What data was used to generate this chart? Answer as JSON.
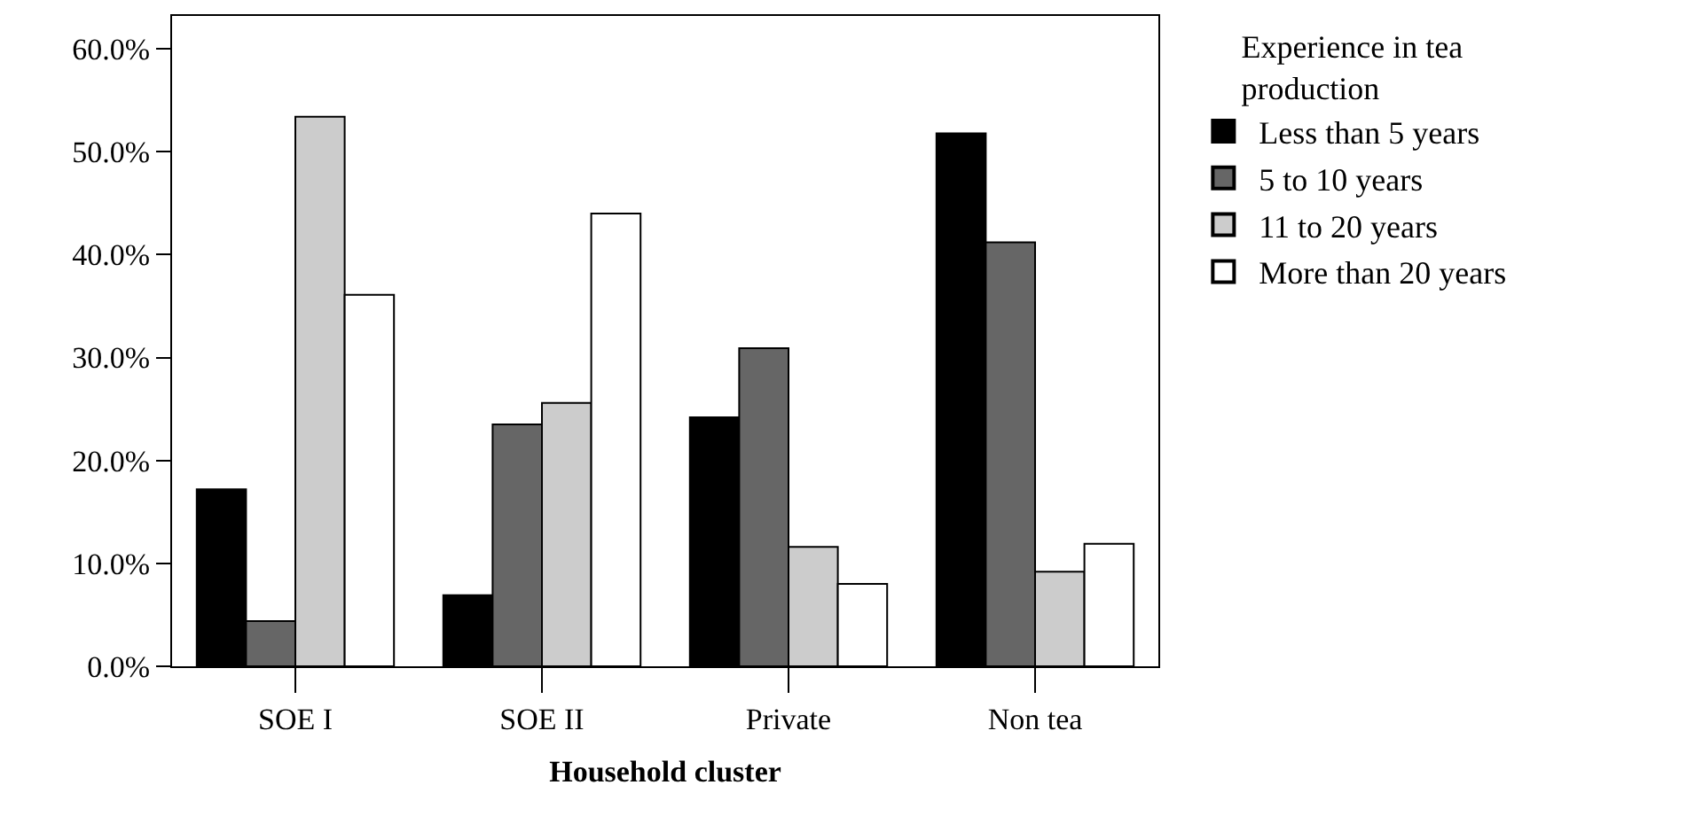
{
  "chart_data": {
    "type": "bar",
    "xlabel": "Household cluster",
    "legend_title": "Experience in tea production",
    "categories": [
      "SOE I",
      "SOE II",
      "Private",
      "Non tea"
    ],
    "series": [
      {
        "name": "Less than 5 years",
        "color": "#000000",
        "values": [
          17.2,
          6.9,
          24.2,
          51.8
        ]
      },
      {
        "name": "5 to 10 years",
        "color": "#666666",
        "values": [
          4.4,
          23.5,
          30.9,
          41.2
        ]
      },
      {
        "name": "11 to 20 years",
        "color": "#cccccc",
        "values": [
          53.4,
          25.6,
          11.6,
          9.2
        ]
      },
      {
        "name": "More than 20 years",
        "color": "#ffffff",
        "values": [
          36.1,
          44.0,
          8.0,
          11.9
        ]
      }
    ],
    "ylim": [
      0,
      63.2
    ],
    "yticks": [
      {
        "value": 0,
        "label": "0.0%"
      },
      {
        "value": 10,
        "label": "10.0%"
      },
      {
        "value": 20,
        "label": "20.0%"
      },
      {
        "value": 30,
        "label": "30.0%"
      },
      {
        "value": 40,
        "label": "40.0%"
      },
      {
        "value": 50,
        "label": "50.0%"
      },
      {
        "value": 60,
        "label": "60.0%"
      }
    ],
    "legend": "right"
  }
}
